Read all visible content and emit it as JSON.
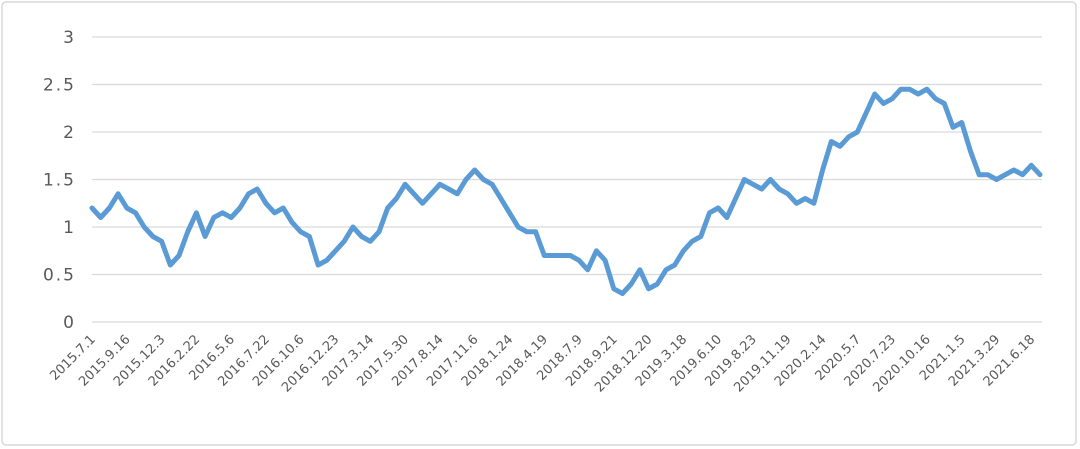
{
  "chart_data": {
    "type": "line",
    "categories": [
      "2015.7.1",
      null,
      null,
      null,
      "2015.9.16",
      null,
      null,
      null,
      "2015.12.3",
      null,
      null,
      null,
      "2016.2.22",
      null,
      null,
      null,
      "2016.5.6",
      null,
      null,
      null,
      "2016.7.22",
      null,
      null,
      null,
      "2016.10.6",
      null,
      null,
      null,
      "2016.12.23",
      null,
      null,
      null,
      "2017.3.14",
      null,
      null,
      null,
      "2017.5.30",
      null,
      null,
      null,
      "2017.8.14",
      null,
      null,
      null,
      "2017.11.6",
      null,
      null,
      null,
      "2018.1.24",
      null,
      null,
      null,
      "2018.4.19",
      null,
      null,
      null,
      "2018.7.9",
      null,
      null,
      null,
      "2018.9.21",
      null,
      null,
      null,
      "2018.12.20",
      null,
      null,
      null,
      "2019.3.18",
      null,
      null,
      null,
      "2019.6.10",
      null,
      null,
      null,
      "2019.8.23",
      null,
      null,
      null,
      "2019.11.19",
      null,
      null,
      null,
      "2020.2.14",
      null,
      null,
      null,
      "2020.5.7",
      null,
      null,
      null,
      "2020.7.23",
      null,
      null,
      null,
      "2020.10.16",
      null,
      null,
      null,
      "2021.1.5",
      null,
      null,
      null,
      "2021.3.29",
      null,
      null,
      null,
      "2021.6.18",
      null
    ],
    "values": [
      1.2,
      1.1,
      1.2,
      1.35,
      1.2,
      1.15,
      1.0,
      0.9,
      0.85,
      0.6,
      0.7,
      0.95,
      1.15,
      0.9,
      1.1,
      1.15,
      1.1,
      1.2,
      1.35,
      1.4,
      1.25,
      1.15,
      1.2,
      1.05,
      0.95,
      0.9,
      0.6,
      0.65,
      0.75,
      0.85,
      1.0,
      0.9,
      0.85,
      0.95,
      1.2,
      1.3,
      1.45,
      1.35,
      1.25,
      1.35,
      1.45,
      1.4,
      1.35,
      1.5,
      1.6,
      1.5,
      1.45,
      1.3,
      1.15,
      1.0,
      0.95,
      0.95,
      0.7,
      0.7,
      0.7,
      0.7,
      0.65,
      0.55,
      0.75,
      0.65,
      0.35,
      0.3,
      0.4,
      0.55,
      0.35,
      0.4,
      0.55,
      0.6,
      0.75,
      0.85,
      0.9,
      1.15,
      1.2,
      1.1,
      1.3,
      1.5,
      1.45,
      1.4,
      1.5,
      1.4,
      1.35,
      1.25,
      1.3,
      1.25,
      1.6,
      1.9,
      1.85,
      1.95,
      2.0,
      2.2,
      2.4,
      2.3,
      2.35,
      2.45,
      2.45,
      2.4,
      2.45,
      2.35,
      2.3,
      2.05,
      2.1,
      1.8,
      1.55,
      1.55,
      1.5,
      1.55,
      1.6,
      1.55,
      1.65,
      1.55
    ],
    "color": "#5b9bd5",
    "ylim": [
      0,
      3
    ],
    "yticks": [
      0,
      0.5,
      1,
      1.5,
      2,
      2.5,
      3
    ],
    "grid": true
  }
}
